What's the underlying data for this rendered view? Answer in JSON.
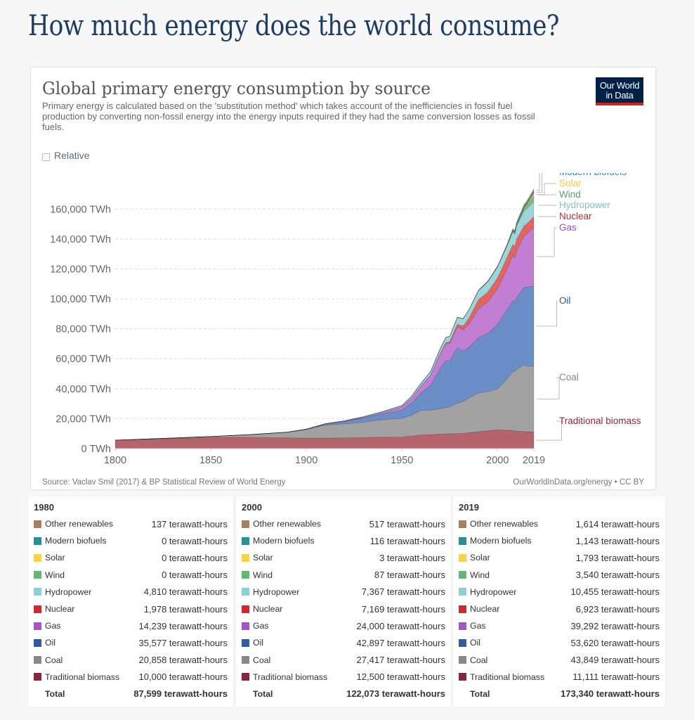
{
  "page": {
    "title": "How much energy does the world consume?"
  },
  "card": {
    "title": "Global primary energy consumption by source",
    "subtitle": "Primary energy is calculated based on the 'substitution method' which takes account of the inefficiencies in fossil fuel production by converting non-fossil energy into the energy inputs required if they had the same conversion losses as fossil fuels.",
    "logo_line1": "Our World",
    "logo_line2": "in Data",
    "relative_label": "Relative",
    "relative_checked": false,
    "source": "Source: Vaclav Smil (2017) & BP Statistical Review of World Energy",
    "license": "OurWorldInData.org/energy • CC BY"
  },
  "chart_data": {
    "type": "area",
    "stacked": true,
    "title": "Global primary energy consumption by source",
    "xlabel": "",
    "ylabel": "",
    "y_unit": "TWh",
    "xlim": [
      1800,
      2019
    ],
    "ylim": [
      0,
      170000
    ],
    "grid": "horizontal-dashed",
    "legend_placement": "right (line labels)",
    "x_ticks": [
      "1800",
      "1850",
      "1900",
      "1950",
      "2000",
      "2019"
    ],
    "x_tick_values": [
      1800,
      1850,
      1900,
      1950,
      2000,
      2019
    ],
    "y_ticks": [
      "0 TWh",
      "20,000 TWh",
      "40,000 TWh",
      "60,000 TWh",
      "80,000 TWh",
      "100,000 TWh",
      "120,000 TWh",
      "140,000 TWh",
      "160,000 TWh"
    ],
    "y_tick_values": [
      0,
      20000,
      40000,
      60000,
      80000,
      100000,
      120000,
      140000,
      160000
    ],
    "x": [
      1800,
      1850,
      1870,
      1890,
      1900,
      1910,
      1920,
      1930,
      1940,
      1950,
      1955,
      1960,
      1965,
      1970,
      1973,
      1975,
      1979,
      1980,
      1982,
      1985,
      1990,
      1995,
      2000,
      2005,
      2008,
      2009,
      2010,
      2014,
      2015,
      2019
    ],
    "series": [
      {
        "name": "Traditional biomass",
        "color": "#b5646b",
        "label_color": "#8e2937",
        "values": [
          5556,
          7500,
          7500,
          7300,
          7000,
          7000,
          7200,
          7400,
          7600,
          7700,
          8400,
          9100,
          9400,
          9700,
          9800,
          9900,
          10000,
          10000,
          10200,
          10600,
          11300,
          12000,
          12500,
          12300,
          12000,
          11900,
          11800,
          11400,
          11300,
          11111
        ]
      },
      {
        "name": "Coal",
        "color": "#a2a2a2",
        "label_color": "#888888",
        "values": [
          97,
          560,
          1800,
          3500,
          5700,
          8800,
          9400,
          10200,
          11800,
          12600,
          14000,
          16600,
          16300,
          17000,
          17600,
          18000,
          20400,
          20858,
          21100,
          23300,
          25900,
          26200,
          27417,
          34400,
          39600,
          39800,
          41200,
          44800,
          43900,
          43849
        ]
      },
      {
        "name": "Oil",
        "color": "#6b8ec9",
        "label_color": "#2b568e",
        "values": [
          0,
          0,
          10,
          150,
          180,
          600,
          1500,
          2800,
          3800,
          5400,
          7900,
          11500,
          16600,
          26700,
          31300,
          30700,
          37000,
          35577,
          33800,
          33600,
          36800,
          38800,
          42897,
          46200,
          47000,
          46400,
          47900,
          51600,
          52600,
          53620
        ]
      },
      {
        "name": "Gas",
        "color": "#c17ed2",
        "label_color": "#a349c4",
        "values": [
          0,
          0,
          0,
          60,
          64,
          160,
          240,
          560,
          900,
          2100,
          3300,
          4600,
          6800,
          10000,
          11600,
          11700,
          13900,
          14239,
          14300,
          15600,
          19500,
          21200,
          24000,
          27300,
          30400,
          29600,
          31600,
          34600,
          35300,
          39292
        ]
      },
      {
        "name": "Nuclear",
        "color": "#e5645e",
        "label_color": "#c4292a",
        "values": [
          0,
          0,
          0,
          0,
          0,
          0,
          0,
          0,
          0,
          0,
          0,
          0,
          70,
          220,
          560,
          1100,
          1770,
          1978,
          2400,
          3900,
          5800,
          6500,
          7169,
          7400,
          7300,
          7100,
          7200,
          6500,
          6600,
          6923
        ]
      },
      {
        "name": "Hydropower",
        "color": "#9dd5db",
        "label_color": "#80c3c9",
        "values": [
          0,
          0,
          0,
          20,
          48,
          100,
          220,
          430,
          670,
          960,
          1300,
          1850,
          2300,
          3000,
          3400,
          3600,
          4620,
          4810,
          4950,
          5500,
          6200,
          6900,
          7367,
          7880,
          8600,
          8600,
          9000,
          10000,
          10000,
          10455
        ]
      },
      {
        "name": "Wind",
        "color": "#7fc089",
        "label_color": "#58a36a",
        "values": [
          0,
          0,
          0,
          0,
          0,
          0,
          0,
          0,
          0,
          0,
          0,
          0,
          0,
          0,
          0,
          0,
          0,
          0,
          0,
          0,
          9,
          20,
          87,
          270,
          570,
          700,
          880,
          1830,
          2120,
          3540
        ]
      },
      {
        "name": "Solar",
        "color": "#f6d86b",
        "label_color": "#f0c94b",
        "values": [
          0,
          0,
          0,
          0,
          0,
          0,
          0,
          0,
          0,
          0,
          0,
          0,
          0,
          0,
          0,
          0,
          0,
          0,
          0,
          0,
          1,
          1,
          3,
          11,
          31,
          53,
          86,
          500,
          650,
          1793
        ]
      },
      {
        "name": "Modern biofuels",
        "color": "#3e9ea8",
        "label_color": "#2e8993",
        "values": [
          0,
          0,
          0,
          0,
          0,
          0,
          0,
          0,
          0,
          0,
          0,
          0,
          0,
          0,
          0,
          0,
          0,
          0,
          20,
          60,
          90,
          100,
          116,
          250,
          610,
          660,
          750,
          940,
          940,
          1143
        ]
      },
      {
        "name": "Other renewables",
        "color": "#a88968",
        "label_color": "#9a7b58",
        "values": [
          0,
          0,
          0,
          0,
          0,
          0,
          0,
          0,
          0,
          0,
          0,
          0,
          30,
          60,
          80,
          90,
          120,
          137,
          150,
          200,
          330,
          420,
          517,
          650,
          800,
          850,
          930,
          1250,
          1330,
          1614
        ]
      }
    ]
  },
  "tooltips": [
    {
      "year": "1980",
      "rows": [
        {
          "name": "Other renewables",
          "value": "137 terawatt-hours",
          "color": "#a4825f"
        },
        {
          "name": "Modern biofuels",
          "value": "0 terawatt-hours",
          "color": "#2c8f97"
        },
        {
          "name": "Solar",
          "value": "0 terawatt-hours",
          "color": "#f6d449"
        },
        {
          "name": "Wind",
          "value": "0 terawatt-hours",
          "color": "#68b57c"
        },
        {
          "name": "Hydropower",
          "value": "4,810 terawatt-hours",
          "color": "#8ccfd6"
        },
        {
          "name": "Nuclear",
          "value": "1,978 terawatt-hours",
          "color": "#d0282d"
        },
        {
          "name": "Gas",
          "value": "14,239 terawatt-hours",
          "color": "#a755c4"
        },
        {
          "name": "Oil",
          "value": "35,577 terawatt-hours",
          "color": "#2f5ca5"
        },
        {
          "name": "Coal",
          "value": "20,858 terawatt-hours",
          "color": "#888888"
        },
        {
          "name": "Traditional biomass",
          "value": "10,000 terawatt-hours",
          "color": "#8e2537"
        }
      ],
      "total_label": "Total",
      "total_value": "87,599 terawatt-hours"
    },
    {
      "year": "2000",
      "rows": [
        {
          "name": "Other renewables",
          "value": "517 terawatt-hours",
          "color": "#a4825f"
        },
        {
          "name": "Modern biofuels",
          "value": "116 terawatt-hours",
          "color": "#2c8f97"
        },
        {
          "name": "Solar",
          "value": "3 terawatt-hours",
          "color": "#f6d449"
        },
        {
          "name": "Wind",
          "value": "87 terawatt-hours",
          "color": "#68b57c"
        },
        {
          "name": "Hydropower",
          "value": "7,367 terawatt-hours",
          "color": "#8ccfd6"
        },
        {
          "name": "Nuclear",
          "value": "7,169 terawatt-hours",
          "color": "#d0282d"
        },
        {
          "name": "Gas",
          "value": "24,000 terawatt-hours",
          "color": "#a755c4"
        },
        {
          "name": "Oil",
          "value": "42,897 terawatt-hours",
          "color": "#2f5ca5"
        },
        {
          "name": "Coal",
          "value": "27,417 terawatt-hours",
          "color": "#888888"
        },
        {
          "name": "Traditional biomass",
          "value": "12,500 terawatt-hours",
          "color": "#8e2537"
        }
      ],
      "total_label": "Total",
      "total_value": "122,073 terawatt-hours"
    },
    {
      "year": "2019",
      "rows": [
        {
          "name": "Other renewables",
          "value": "1,614 terawatt-hours",
          "color": "#a4825f"
        },
        {
          "name": "Modern biofuels",
          "value": "1,143 terawatt-hours",
          "color": "#2c8f97"
        },
        {
          "name": "Solar",
          "value": "1,793 terawatt-hours",
          "color": "#f6d449"
        },
        {
          "name": "Wind",
          "value": "3,540 terawatt-hours",
          "color": "#68b57c"
        },
        {
          "name": "Hydropower",
          "value": "10,455 terawatt-hours",
          "color": "#8ccfd6"
        },
        {
          "name": "Nuclear",
          "value": "6,923 terawatt-hours",
          "color": "#d0282d"
        },
        {
          "name": "Gas",
          "value": "39,292 terawatt-hours",
          "color": "#a755c4"
        },
        {
          "name": "Oil",
          "value": "53,620 terawatt-hours",
          "color": "#2f5ca5"
        },
        {
          "name": "Coal",
          "value": "43,849 terawatt-hours",
          "color": "#888888"
        },
        {
          "name": "Traditional biomass",
          "value": "11,111 terawatt-hours",
          "color": "#8e2537"
        }
      ],
      "total_label": "Total",
      "total_value": "173,340 terawatt-hours"
    }
  ]
}
